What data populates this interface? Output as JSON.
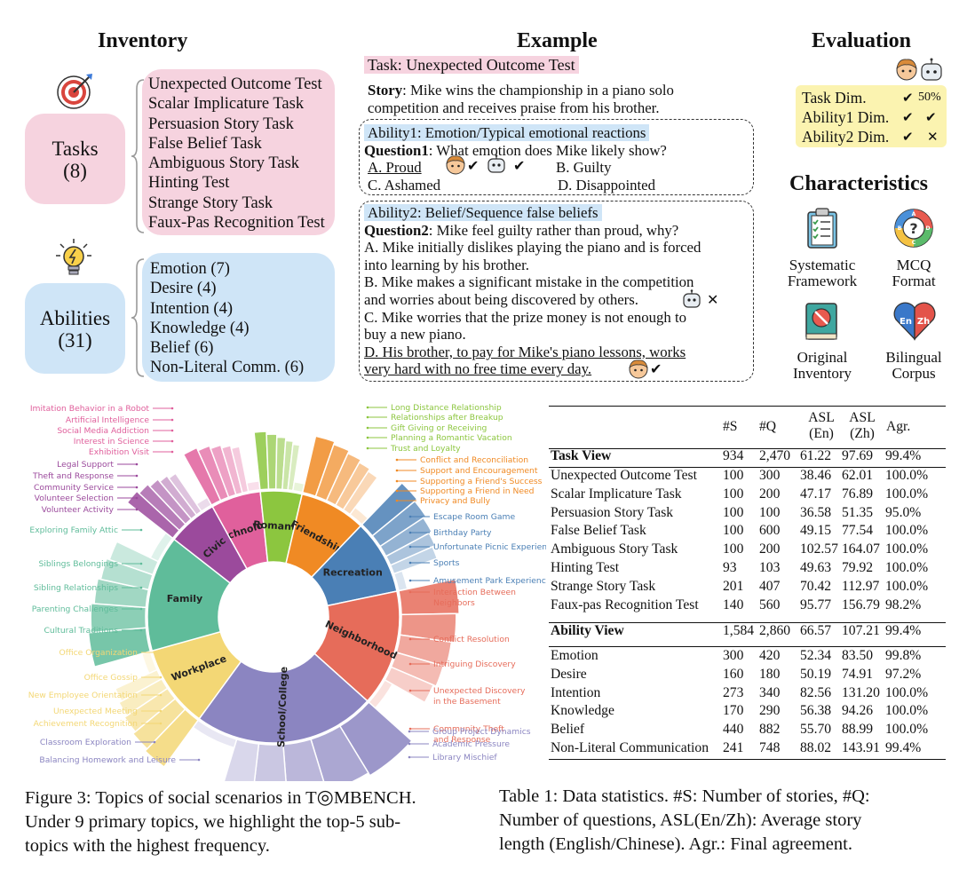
{
  "headers": {
    "inventory": "Inventory",
    "example": "Example",
    "evaluation": "Evaluation",
    "characteristics": "Characteristics"
  },
  "inventory": {
    "tasks_label": "Tasks",
    "tasks_count": "(8)",
    "tasks": [
      "Unexpected Outcome Test",
      "Scalar Implicature Task",
      "Persuasion Story Task",
      "False Belief Task",
      "Ambiguous Story Task",
      "Hinting Test",
      "Strange Story Task",
      "Faux-Pas Recognition Test"
    ],
    "abilities_label": "Abilities",
    "abilities_count": "(31)",
    "abilities": [
      "Emotion (7)",
      "Desire (4)",
      "Intention (4)",
      "Knowledge (4)",
      "Belief (6)",
      "Non-Literal Comm. (6)"
    ]
  },
  "example": {
    "task": "Task: Unexpected Outcome Test",
    "story_label": "Story",
    "story_line1": ": Mike wins the championship in a piano solo",
    "story_line2": "competition and receives praise from his brother.",
    "ability1": "Ability1: Emotion/Typical emotional reactions",
    "q1_label": "Question1",
    "q1_text": ": What emotion does Mike likely show?",
    "q1_options": [
      "A. Proud",
      "B. Guilty",
      "C. Ashamed",
      "D. Disappointed"
    ],
    "ability2": "Ability2: Belief/Sequence false beliefs",
    "q2_label": "Question2",
    "q2_text": ": Mike feel guilty rather than proud, why?",
    "q2_lines": [
      "A. Mike initially dislikes playing the piano and is forced",
      "into learning by his brother.",
      "B. Mike makes a significant mistake in the competition",
      "and worries about being discovered by others.",
      "C. Mike worries that the prize money is not enough to",
      "buy a new piano.",
      "D. His brother, to pay for Mike's piano lessons, works",
      "very hard with no free time every day."
    ],
    "check": "✔",
    "cross": "✕"
  },
  "evaluation": {
    "rows": [
      {
        "label": "Task Dim.",
        "human": "✔",
        "model": "50%"
      },
      {
        "label": "Ability1 Dim.",
        "human": "✔",
        "model": "✔"
      },
      {
        "label": "Ability2 Dim.",
        "human": "✔",
        "model": "✕"
      }
    ]
  },
  "characteristics": [
    {
      "line1": "Systematic",
      "line2": "Framework",
      "icon": "clipboard-checklist-icon"
    },
    {
      "line1": "MCQ",
      "line2": "Format",
      "icon": "mcq-abcd-icon"
    },
    {
      "line1": "Original",
      "line2": "Inventory",
      "icon": "book-icon"
    },
    {
      "line1": "Bilingual",
      "line2": "Corpus",
      "icon": "en-zh-heart-icon",
      "en": "En",
      "zh": "Zh"
    }
  ],
  "sunburst": {
    "inner": [
      {
        "name": "Technology",
        "value": 6,
        "color": "#e0609c"
      },
      {
        "name": "Romantic",
        "value": 5,
        "color": "#8cc63f"
      },
      {
        "name": "Friendship",
        "value": 8,
        "color": "#f08a24"
      },
      {
        "name": "Recreation",
        "value": 9,
        "color": "#4a7fb5"
      },
      {
        "name": "Neighborhood",
        "value": 14,
        "color": "#e66c5a"
      },
      {
        "name": "School/College",
        "value": 22,
        "color": "#8b85c1"
      },
      {
        "name": "Workplace",
        "value": 10,
        "color": "#f3d775"
      },
      {
        "name": "Family",
        "value": 14,
        "color": "#5fbc9a"
      },
      {
        "name": "Civic",
        "value": 6,
        "color": "#9b4a9c"
      }
    ],
    "labels": {
      "Technology": [
        "Imitation Behavior in a Robot",
        "Artificial Intelligence",
        "Social Media Addiction",
        "Interest in Science",
        "Exhibition Visit"
      ],
      "Romantic": [
        "Long Distance Relationship",
        "Relationships after Breakup",
        "Gift Giving or Receiving",
        "Planning a Romantic Vacation",
        "Trust and Loyalty"
      ],
      "Friendship": [
        "Conflict and Reconciliation",
        "Support and Encouragement",
        "Supporting a Friend's Success",
        "Supporting a Friend in Need",
        "Privacy and Bully"
      ],
      "Recreation": [
        "Escape Room Game",
        "Birthday Party",
        "Unfortunate Picnic Experience",
        "Sports",
        "Amusement Park Experience"
      ],
      "Neighborhood": [
        "Interaction Between Neighbors",
        "Conflict Resolution",
        "Intriguing Discovery",
        "Unexpected Discovery in the Basement",
        "Community Theft and Response"
      ],
      "School/College": [
        "Group Project Dynamics",
        "Academic Pressure",
        "Library Mischief",
        "Balancing Homework and Leisure",
        "Classroom Exploration"
      ],
      "Workplace": [
        "Achievement Recognition",
        "Unexpected Meeting",
        "New Employee Orientation",
        "Office Gossip",
        "Office Organization"
      ],
      "Family": [
        "Cultural Traditions",
        "Parenting Challenges",
        "Sibling Relationships",
        "Siblings Belongings",
        "Exploring Family Attic"
      ],
      "Civic": [
        "Legal Support",
        "Theft and Response",
        "Community Service",
        "Volunteer Selection",
        "Volunteer Activity"
      ]
    }
  },
  "table": {
    "headers": [
      "#S",
      "#Q",
      "ASL",
      "ASL",
      "Agr."
    ],
    "headers_sub": [
      "",
      "",
      "(En)",
      "(Zh)",
      ""
    ],
    "task_view": {
      "label": "Task View",
      "values": [
        "934",
        "2,470",
        "61.22",
        "97.69",
        "99.4%"
      ]
    },
    "task_rows": [
      [
        "Unexpected Outcome Test",
        "100",
        "300",
        "38.46",
        "62.01",
        "100.0%"
      ],
      [
        "Scalar Implicature Task",
        "100",
        "200",
        "47.17",
        "76.89",
        "100.0%"
      ],
      [
        "Persuasion Story Task",
        "100",
        "100",
        "36.58",
        "51.35",
        "95.0%"
      ],
      [
        "False Belief Task",
        "100",
        "600",
        "49.15",
        "77.54",
        "100.0%"
      ],
      [
        "Ambiguous Story Task",
        "100",
        "200",
        "102.57",
        "164.07",
        "100.0%"
      ],
      [
        "Hinting Test",
        "93",
        "103",
        "49.63",
        "79.92",
        "100.0%"
      ],
      [
        "Strange Story Task",
        "201",
        "407",
        "70.42",
        "112.97",
        "100.0%"
      ],
      [
        "Faux-pas Recognition Test",
        "140",
        "560",
        "95.77",
        "156.79",
        "98.2%"
      ]
    ],
    "ability_view": {
      "label": "Ability View",
      "values": [
        "1,584",
        "2,860",
        "66.57",
        "107.21",
        "99.4%"
      ]
    },
    "ability_rows": [
      [
        "Emotion",
        "300",
        "420",
        "52.34",
        "83.50",
        "99.8%"
      ],
      [
        "Desire",
        "160",
        "180",
        "50.19",
        "74.91",
        "97.2%"
      ],
      [
        "Intention",
        "273",
        "340",
        "82.56",
        "131.20",
        "100.0%"
      ],
      [
        "Knowledge",
        "170",
        "290",
        "56.38",
        "94.26",
        "100.0%"
      ],
      [
        "Belief",
        "440",
        "882",
        "55.70",
        "88.99",
        "100.0%"
      ],
      [
        "Non-Literal Communication",
        "241",
        "748",
        "88.02",
        "143.91",
        "99.4%"
      ]
    ]
  },
  "captions": {
    "fig_line1": "Figure 3: Topics of social scenarios in T",
    "fig_brand": "MBENCH.",
    "fig_line2": "Under 9 primary topics, we highlight the top-5 sub-",
    "fig_line3": "topics with the highest frequency.",
    "tab_line1": "Table 1: Data statistics. #S: Number of stories, #Q:",
    "tab_line2": "Number of questions, ASL(En/Zh): Average story",
    "tab_line3": "length (English/Chinese). Agr.: Final agreement."
  }
}
